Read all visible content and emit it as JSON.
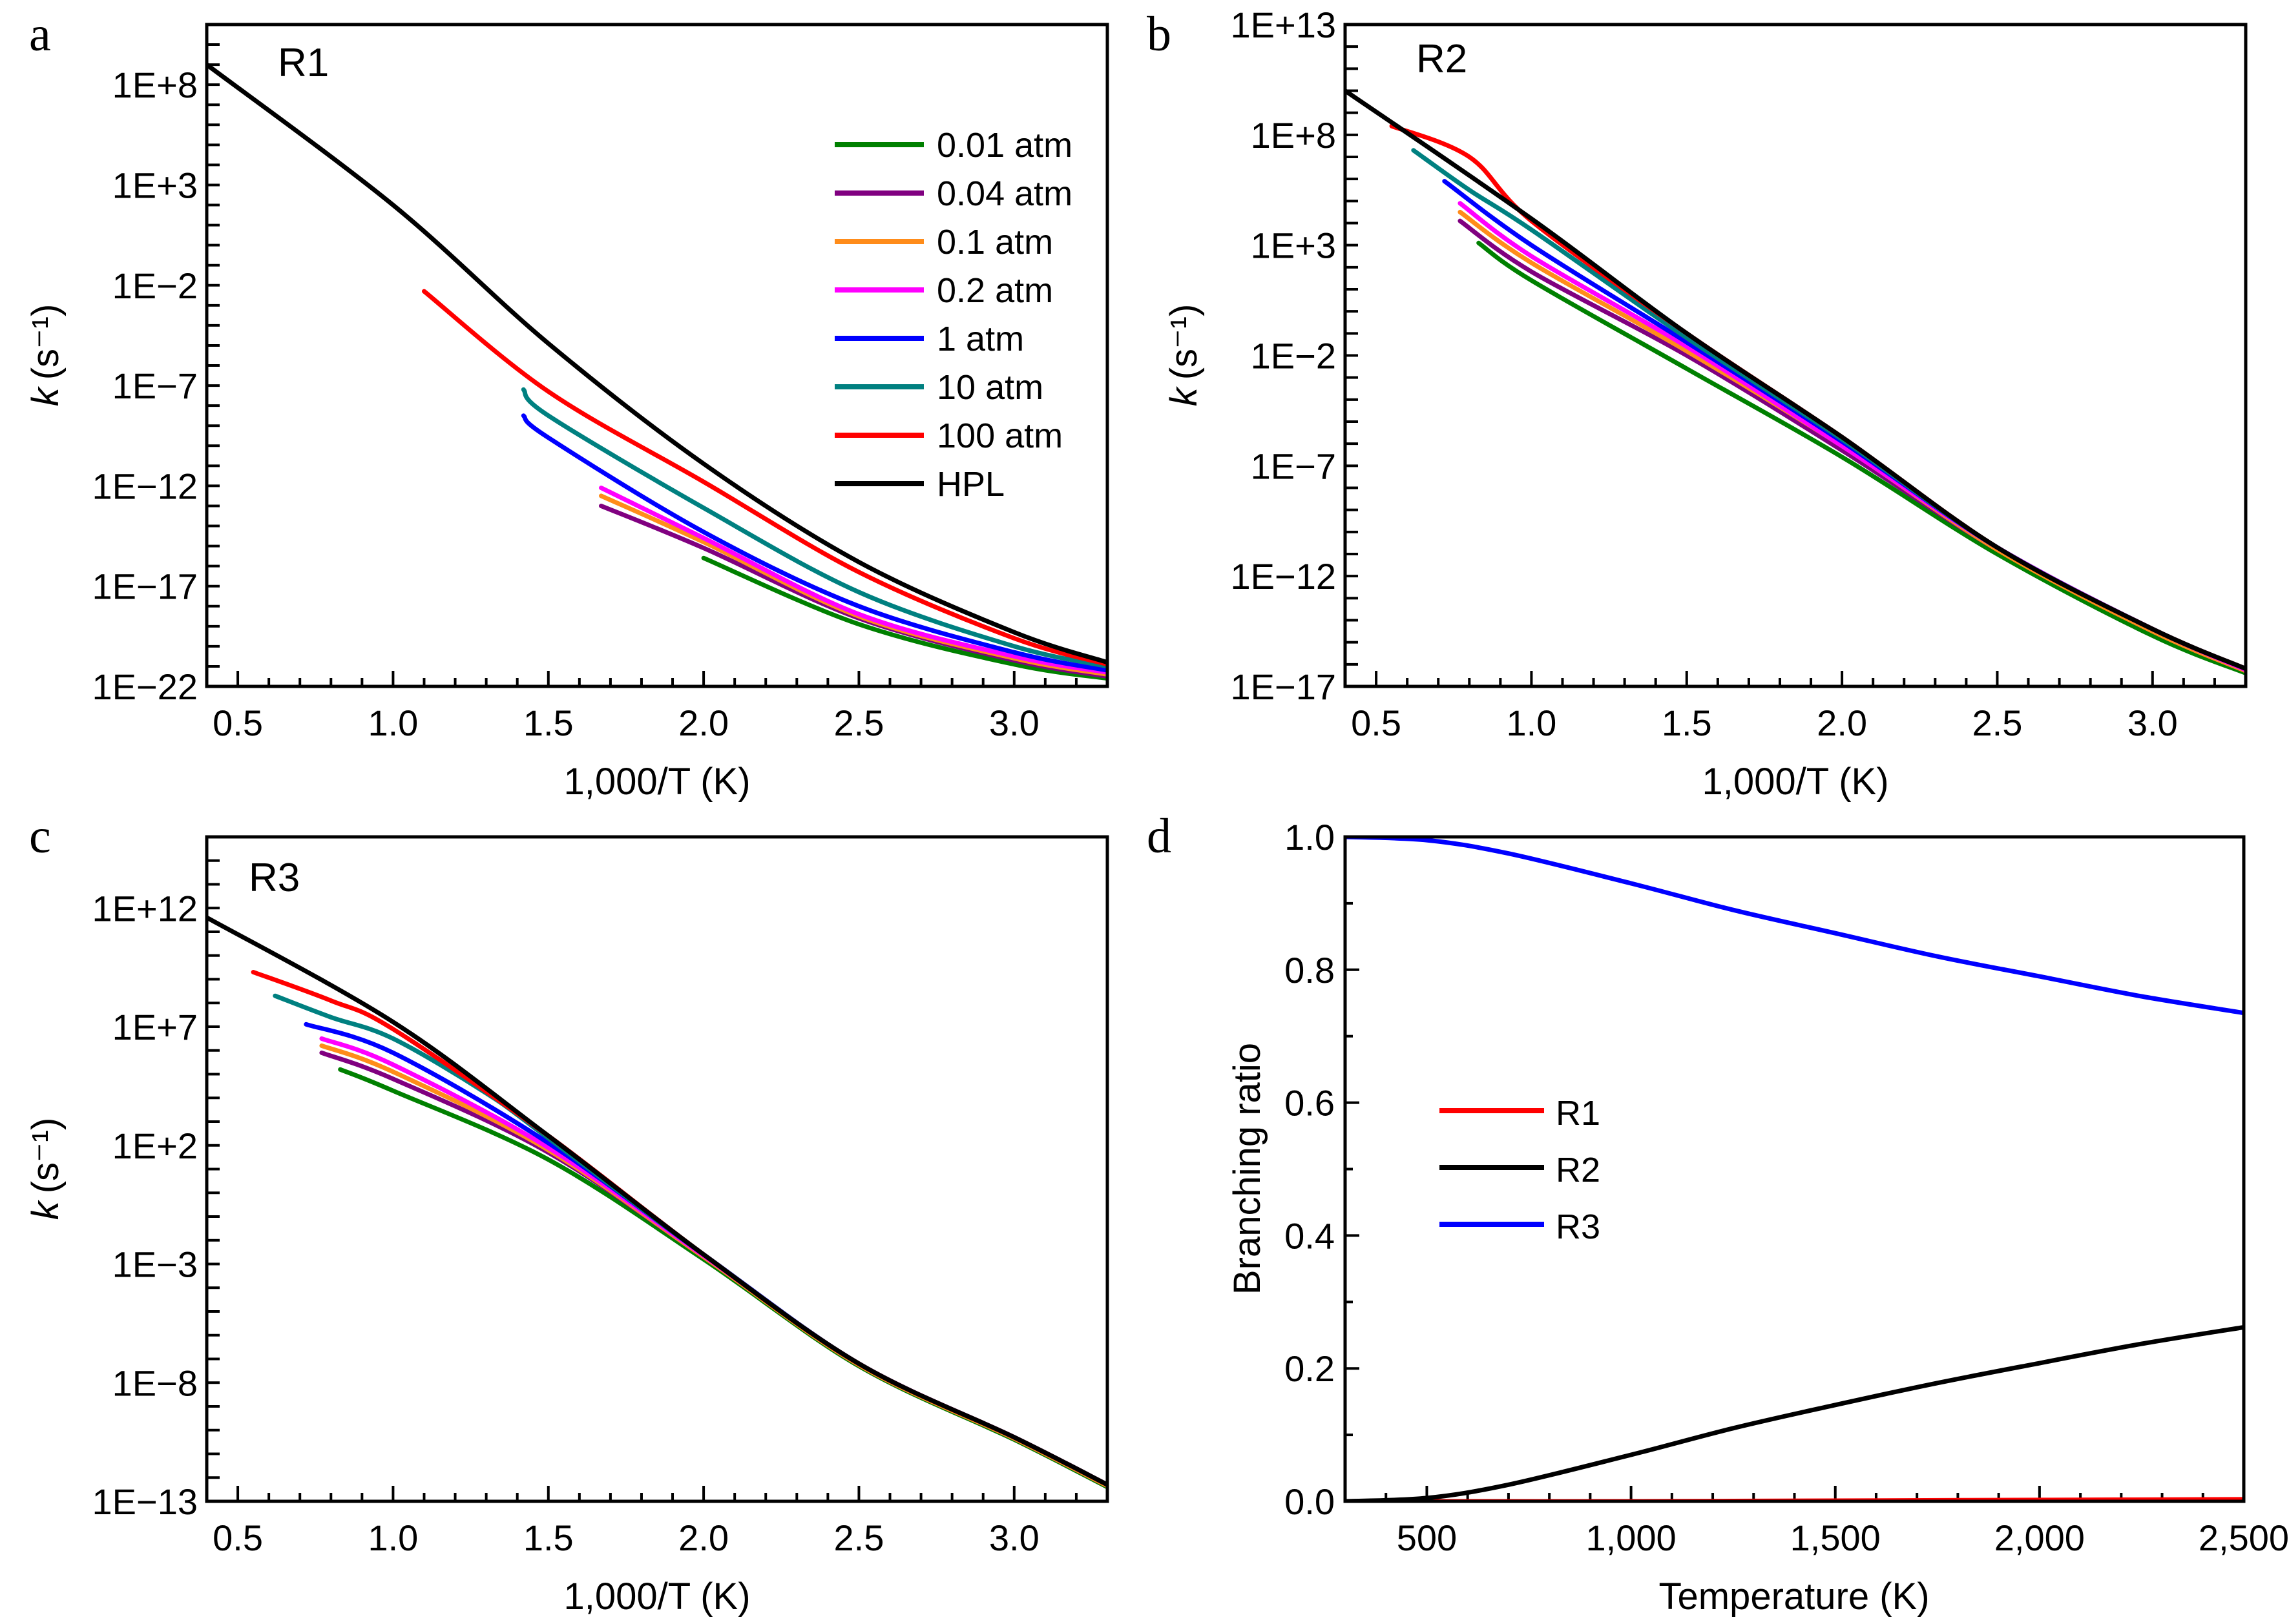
{
  "figure": {
    "panels": [
      "a",
      "b",
      "c",
      "d"
    ]
  },
  "chart_data": [
    {
      "id": "a",
      "type": "line",
      "panel_letter": "a",
      "annotation": "R1",
      "xlabel": "1,000/T (K)",
      "ylabel_main": "k",
      "ylabel_unit": "(s⁻¹)",
      "xlim": [
        0.4,
        3.3
      ],
      "ylim_log10": [
        -22,
        11
      ],
      "yscale": "log",
      "x_ticks": [
        0.5,
        1.0,
        1.5,
        2.0,
        2.5,
        3.0
      ],
      "x_tick_labels": [
        "0.5",
        "1.0",
        "1.5",
        "2.0",
        "2.5",
        "3.0"
      ],
      "y_ticks_log10": [
        8,
        3,
        -2,
        -7,
        -12,
        -17,
        -22
      ],
      "y_tick_labels": [
        "1E+8",
        "1E+3",
        "1E−2",
        "1E−7",
        "1E−12",
        "1E−17",
        "1E−22"
      ],
      "legend": {
        "position": "upper-right"
      },
      "series": [
        {
          "name": "0.01 atm",
          "color": "#008000",
          "x": [
            2.0,
            2.5,
            3.0,
            3.3
          ],
          "log10_k": [
            -15.6,
            -18.9,
            -20.9,
            -21.6
          ]
        },
        {
          "name": "0.04 atm",
          "color": "#800080",
          "x": [
            1.67,
            2.0,
            2.5,
            3.0,
            3.3
          ],
          "log10_k": [
            -13.0,
            -15.1,
            -18.6,
            -20.7,
            -21.5
          ]
        },
        {
          "name": "0.1 atm",
          "color": "#ff8c1a",
          "x": [
            1.67,
            2.0,
            2.5,
            3.0,
            3.3
          ],
          "log10_k": [
            -12.5,
            -14.8,
            -18.5,
            -20.6,
            -21.4
          ]
        },
        {
          "name": "0.2 atm",
          "color": "#ff00ff",
          "x": [
            1.67,
            2.0,
            2.5,
            3.0,
            3.3
          ],
          "log10_k": [
            -12.1,
            -14.6,
            -18.4,
            -20.5,
            -21.3
          ]
        },
        {
          "name": "1 atm",
          "color": "#0000ff",
          "x": [
            1.42,
            1.5,
            2.0,
            2.5,
            3.0,
            3.3
          ],
          "log10_k": [
            -8.5,
            -9.6,
            -14.3,
            -18.0,
            -20.3,
            -21.2
          ]
        },
        {
          "name": "10 atm",
          "color": "#008080",
          "x": [
            1.42,
            1.5,
            2.0,
            2.5,
            3.0,
            3.3
          ],
          "log10_k": [
            -7.2,
            -8.5,
            -13.1,
            -17.3,
            -20.0,
            -21.0
          ]
        },
        {
          "name": "100 atm",
          "color": "#ff0000",
          "x": [
            1.1,
            1.5,
            2.0,
            2.5,
            3.0,
            3.3
          ],
          "log10_k": [
            -2.3,
            -7.3,
            -11.8,
            -16.3,
            -19.6,
            -20.9
          ]
        },
        {
          "name": "HPL",
          "color": "#000000",
          "x": [
            0.4,
            1.0,
            1.5,
            2.0,
            2.5,
            3.0,
            3.3
          ],
          "log10_k": [
            9.0,
            2.0,
            -4.9,
            -10.9,
            -15.8,
            -19.3,
            -20.8
          ]
        }
      ]
    },
    {
      "id": "b",
      "type": "line",
      "panel_letter": "b",
      "annotation": "R2",
      "xlabel": "1,000/T (K)",
      "ylabel_main": "k",
      "ylabel_unit": "(s⁻¹)",
      "xlim": [
        0.4,
        3.3
      ],
      "ylim_log10": [
        -17,
        13
      ],
      "yscale": "log",
      "x_ticks": [
        0.5,
        1.0,
        1.5,
        2.0,
        2.5,
        3.0
      ],
      "x_tick_labels": [
        "0.5",
        "1.0",
        "1.5",
        "2.0",
        "2.5",
        "3.0"
      ],
      "y_ticks_log10": [
        13,
        8,
        3,
        -2,
        -7,
        -12,
        -17
      ],
      "y_tick_labels": [
        "1E+13",
        "1E+8",
        "1E+3",
        "1E−2",
        "1E−7",
        "1E−12",
        "1E−17"
      ],
      "series": [
        {
          "name": "0.01 atm",
          "color": "#008000",
          "x": [
            0.83,
            1.0,
            1.5,
            2.0,
            2.5,
            3.0,
            3.3
          ],
          "log10_k": [
            3.1,
            1.4,
            -2.6,
            -6.6,
            -11.0,
            -14.7,
            -16.4
          ]
        },
        {
          "name": "0.04 atm",
          "color": "#800080",
          "x": [
            0.77,
            1.0,
            1.5,
            2.0,
            2.5,
            3.0,
            3.3
          ],
          "log10_k": [
            4.1,
            1.8,
            -2.0,
            -6.3,
            -10.8,
            -14.5,
            -16.3
          ]
        },
        {
          "name": "0.1 atm",
          "color": "#ff8c1a",
          "x": [
            0.77,
            1.0,
            1.5,
            2.0,
            2.5,
            3.0,
            3.3
          ],
          "log10_k": [
            4.5,
            2.2,
            -1.8,
            -6.1,
            -10.8,
            -14.5,
            -16.3
          ]
        },
        {
          "name": "0.2 atm",
          "color": "#ff00ff",
          "x": [
            0.77,
            1.0,
            1.5,
            2.0,
            2.5,
            3.0,
            3.3
          ],
          "log10_k": [
            4.9,
            2.5,
            -1.6,
            -6.1,
            -10.7,
            -14.4,
            -16.25
          ]
        },
        {
          "name": "1 atm",
          "color": "#0000ff",
          "x": [
            0.72,
            1.0,
            1.5,
            2.0,
            2.5,
            3.0,
            3.3
          ],
          "log10_k": [
            5.9,
            3.0,
            -1.4,
            -5.9,
            -10.7,
            -14.4,
            -16.2
          ]
        },
        {
          "name": "10 atm",
          "color": "#008080",
          "x": [
            0.62,
            0.8,
            1.0,
            1.5,
            2.0,
            2.5,
            3.0,
            3.3
          ],
          "log10_k": [
            7.3,
            5.5,
            3.7,
            -1.2,
            -5.8,
            -10.7,
            -14.4,
            -16.2
          ]
        },
        {
          "name": "100 atm",
          "color": "#ff0000",
          "x": [
            0.55,
            0.8,
            1.0,
            1.5,
            2.0,
            2.5,
            3.0,
            3.3
          ],
          "log10_k": [
            8.4,
            7.0,
            4.1,
            -1.0,
            -5.7,
            -10.7,
            -14.4,
            -16.2
          ]
        },
        {
          "name": "HPL",
          "color": "#000000",
          "x": [
            0.4,
            1.0,
            1.5,
            2.0,
            2.5,
            3.0,
            3.3
          ],
          "log10_k": [
            10.0,
            4.2,
            -1.0,
            -5.7,
            -10.7,
            -14.4,
            -16.2
          ]
        }
      ]
    },
    {
      "id": "c",
      "type": "line",
      "panel_letter": "c",
      "annotation": "R3",
      "xlabel": "1,000/T (K)",
      "ylabel_main": "k",
      "ylabel_unit": "(s⁻¹)",
      "xlim": [
        0.4,
        3.3
      ],
      "ylim_log10": [
        -13,
        15
      ],
      "yscale": "log",
      "x_ticks": [
        0.5,
        1.0,
        1.5,
        2.0,
        2.5,
        3.0
      ],
      "x_tick_labels": [
        "0.5",
        "1.0",
        "1.5",
        "2.0",
        "2.5",
        "3.0"
      ],
      "y_ticks_log10": [
        12,
        7,
        2,
        -3,
        -8,
        -13
      ],
      "y_tick_labels": [
        "1E+12",
        "1E+7",
        "1E+2",
        "1E−3",
        "1E−8",
        "1E−13"
      ],
      "series": [
        {
          "name": "0.01 atm",
          "color": "#008000",
          "x": [
            0.83,
            1.0,
            1.5,
            2.0,
            2.5,
            3.0,
            3.3
          ],
          "log10_k": [
            5.2,
            4.3,
            1.4,
            -2.8,
            -7.3,
            -10.4,
            -12.4
          ]
        },
        {
          "name": "0.04 atm",
          "color": "#800080",
          "x": [
            0.77,
            1.0,
            1.5,
            2.0,
            2.5,
            3.0,
            3.3
          ],
          "log10_k": [
            5.9,
            4.8,
            1.7,
            -2.7,
            -7.25,
            -10.35,
            -12.35
          ]
        },
        {
          "name": "0.1 atm",
          "color": "#ff8c1a",
          "x": [
            0.77,
            1.0,
            1.5,
            2.0,
            2.5,
            3.0,
            3.3
          ],
          "log10_k": [
            6.2,
            5.1,
            1.8,
            -2.7,
            -7.25,
            -10.35,
            -12.35
          ]
        },
        {
          "name": "0.2 atm",
          "color": "#ff00ff",
          "x": [
            0.77,
            1.0,
            1.5,
            2.0,
            2.5,
            3.0,
            3.3
          ],
          "log10_k": [
            6.5,
            5.4,
            1.9,
            -2.65,
            -7.2,
            -10.3,
            -12.3
          ]
        },
        {
          "name": "1 atm",
          "color": "#0000ff",
          "x": [
            0.72,
            1.0,
            1.5,
            2.0,
            2.5,
            3.0,
            3.3
          ],
          "log10_k": [
            7.1,
            5.9,
            2.1,
            -2.6,
            -7.2,
            -10.3,
            -12.3
          ]
        },
        {
          "name": "10 atm",
          "color": "#008080",
          "x": [
            0.62,
            0.8,
            1.0,
            1.3,
            1.5,
            2.0,
            2.5,
            3.0,
            3.3
          ],
          "log10_k": [
            8.3,
            7.4,
            6.5,
            4.2,
            2.3,
            -2.6,
            -7.2,
            -10.3,
            -12.3
          ]
        },
        {
          "name": "100 atm",
          "color": "#ff0000",
          "x": [
            0.55,
            0.8,
            1.0,
            1.5,
            2.0,
            2.5,
            3.0,
            3.3
          ],
          "log10_k": [
            9.3,
            8.1,
            6.9,
            2.4,
            -2.6,
            -7.2,
            -10.3,
            -12.3
          ]
        },
        {
          "name": "HPL",
          "color": "#000000",
          "x": [
            0.4,
            1.0,
            1.5,
            2.0,
            2.5,
            3.0,
            3.3
          ],
          "log10_k": [
            11.6,
            7.2,
            2.4,
            -2.6,
            -7.2,
            -10.3,
            -12.3
          ]
        }
      ]
    },
    {
      "id": "d",
      "type": "line",
      "panel_letter": "d",
      "xlabel": "Temperature (K)",
      "ylabel": "Branching ratio",
      "xlim": [
        300,
        2500
      ],
      "ylim": [
        0.0,
        1.0
      ],
      "x_ticks": [
        500,
        1000,
        1500,
        2000,
        2500
      ],
      "x_tick_labels": [
        "500",
        "1,000",
        "1,500",
        "2,000",
        "2,500"
      ],
      "y_ticks": [
        0.0,
        0.2,
        0.4,
        0.6,
        0.8,
        1.0
      ],
      "y_tick_labels": [
        "0.0",
        "0.2",
        "0.4",
        "0.6",
        "0.8",
        "1.0"
      ],
      "legend": {
        "position": "center-left"
      },
      "series": [
        {
          "name": "R1",
          "color": "#ff0000",
          "x": [
            300,
            500,
            1000,
            1500,
            2000,
            2500
          ],
          "y": [
            0.0,
            0.0,
            0.0,
            0.001,
            0.002,
            0.003
          ]
        },
        {
          "name": "R2",
          "color": "#000000",
          "x": [
            300,
            500,
            700,
            1000,
            1250,
            1500,
            1750,
            2000,
            2250,
            2500
          ],
          "y": [
            0.0,
            0.005,
            0.025,
            0.07,
            0.11,
            0.145,
            0.178,
            0.208,
            0.237,
            0.262
          ]
        },
        {
          "name": "R3",
          "color": "#0000ff",
          "x": [
            300,
            500,
            700,
            1000,
            1250,
            1500,
            1750,
            2000,
            2250,
            2500
          ],
          "y": [
            1.0,
            0.995,
            0.975,
            0.93,
            0.89,
            0.855,
            0.82,
            0.79,
            0.76,
            0.735
          ]
        }
      ]
    }
  ]
}
